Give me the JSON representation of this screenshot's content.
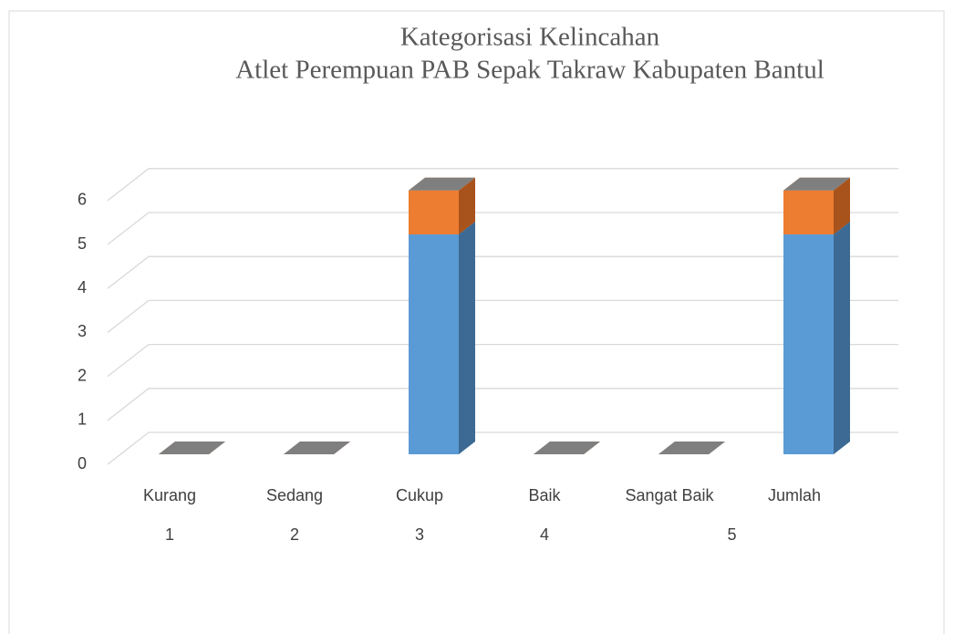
{
  "chart_data": {
    "type": "bar3d_stacked",
    "title": [
      "Kategorisasi Kelincahan",
      "Atlet Perempuan PAB Sepak Takraw Kabupaten Bantul"
    ],
    "categories": [
      "Kurang",
      "Sedang",
      "Cukup",
      "Baik",
      "Sangat Baik",
      "Jumlah"
    ],
    "group_labels": [
      "1",
      "2",
      "3",
      "4",
      "5"
    ],
    "group_sizes": [
      1,
      1,
      1,
      1,
      2
    ],
    "series": [
      {
        "color": "#5b9bd5",
        "side_color": "#3c6a94",
        "values": [
          0,
          0,
          5,
          0,
          0,
          5
        ]
      },
      {
        "color": "#ed7d31",
        "side_color": "#a9531c",
        "values": [
          0,
          0,
          1,
          0,
          0,
          1
        ]
      },
      {
        "color": "#7f7f7f",
        "side_color": "#5a5a5a",
        "values": [
          0,
          0,
          0,
          0,
          0,
          0
        ]
      }
    ],
    "ylim": [
      0,
      6
    ],
    "yticks": [
      0,
      1,
      2,
      3,
      4,
      5,
      6
    ],
    "grid": true
  }
}
